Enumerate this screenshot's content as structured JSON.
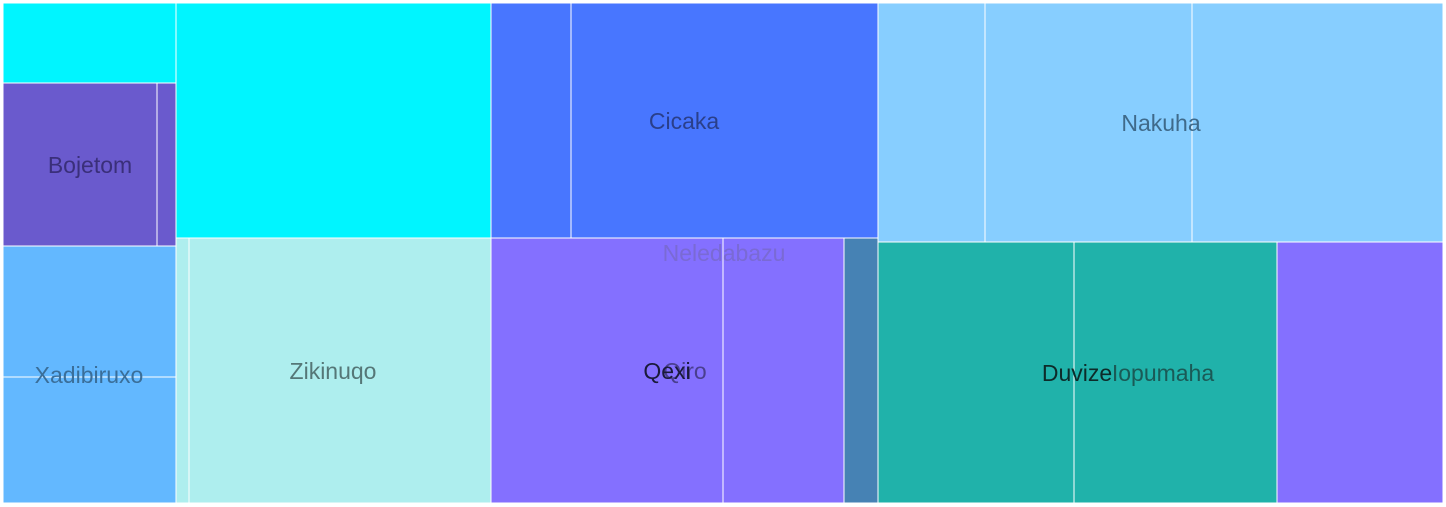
{
  "chart_data": {
    "type": "treemap",
    "title": "",
    "groups": [
      {
        "name": "Bojetom",
        "color": "#6A5ACD",
        "label_color": "#3a2f7a",
        "children": [
          {
            "color": "#00F5FF",
            "value": 2.0
          },
          {
            "color": "#6A5ACD",
            "value": 3.5
          },
          {
            "color": "#6A5ACD",
            "value": 0.5
          },
          {
            "color": "#00F5FF",
            "value": 10.3
          }
        ]
      },
      {
        "name": "Cicaka",
        "color": "#4876FF",
        "label_color": "#2a3f8a",
        "children": [
          {
            "color": "#4876FF",
            "value": 2.4
          },
          {
            "color": "#4876FF",
            "value": 9.0
          }
        ]
      },
      {
        "name": "Nakuha",
        "color": "#87CEFF",
        "label_color": "#3f6a8a",
        "children": [
          {
            "color": "#87CEFF",
            "value": 3.2
          },
          {
            "color": "#87CEFF",
            "value": 6.4
          },
          {
            "color": "#87CEFF",
            "value": 7.2
          }
        ]
      },
      {
        "name": "Xadibiruxo",
        "color": "#63B8FF",
        "label_color": "#3a6e99",
        "children": [
          {
            "color": "#63B8FF",
            "value": 3.0
          },
          {
            "color": "#63B8FF",
            "value": 3.0
          }
        ]
      },
      {
        "name": "Zikinuqo",
        "color": "#AEEEEE",
        "label_color": "#557777",
        "children": [
          {
            "color": "#AEEEEE",
            "value": 0.4
          },
          {
            "color": "#AEEEEE",
            "value": 10.6
          }
        ]
      },
      {
        "name": "Neledabazu",
        "color": "#8470FF",
        "label_color": "#7a6ad4",
        "children": []
      },
      {
        "name": "Qexi",
        "color": "#8470FF",
        "label_color": "#1a1a3a",
        "children": [
          {
            "color": "#8470FF",
            "value": 8.3
          }
        ]
      },
      {
        "name": "Qiro",
        "color": "#8470FF",
        "label_color": "#4a3f8f",
        "children": [
          {
            "color": "#8470FF",
            "value": 4.3
          },
          {
            "color": "#4682B4",
            "value": 1.2
          }
        ]
      },
      {
        "name": "Duvize",
        "color": "#20B2AA",
        "label_color": "#0d2b29",
        "children": [
          {
            "color": "#20B2AA",
            "value": 6.8
          }
        ]
      },
      {
        "name": "Iopumaha",
        "color": "#20B2AA",
        "label_color": "#1a5a56",
        "children": [
          {
            "color": "#20B2AA",
            "value": 7.1
          },
          {
            "color": "#8470FF",
            "value": 5.8
          }
        ]
      }
    ]
  }
}
